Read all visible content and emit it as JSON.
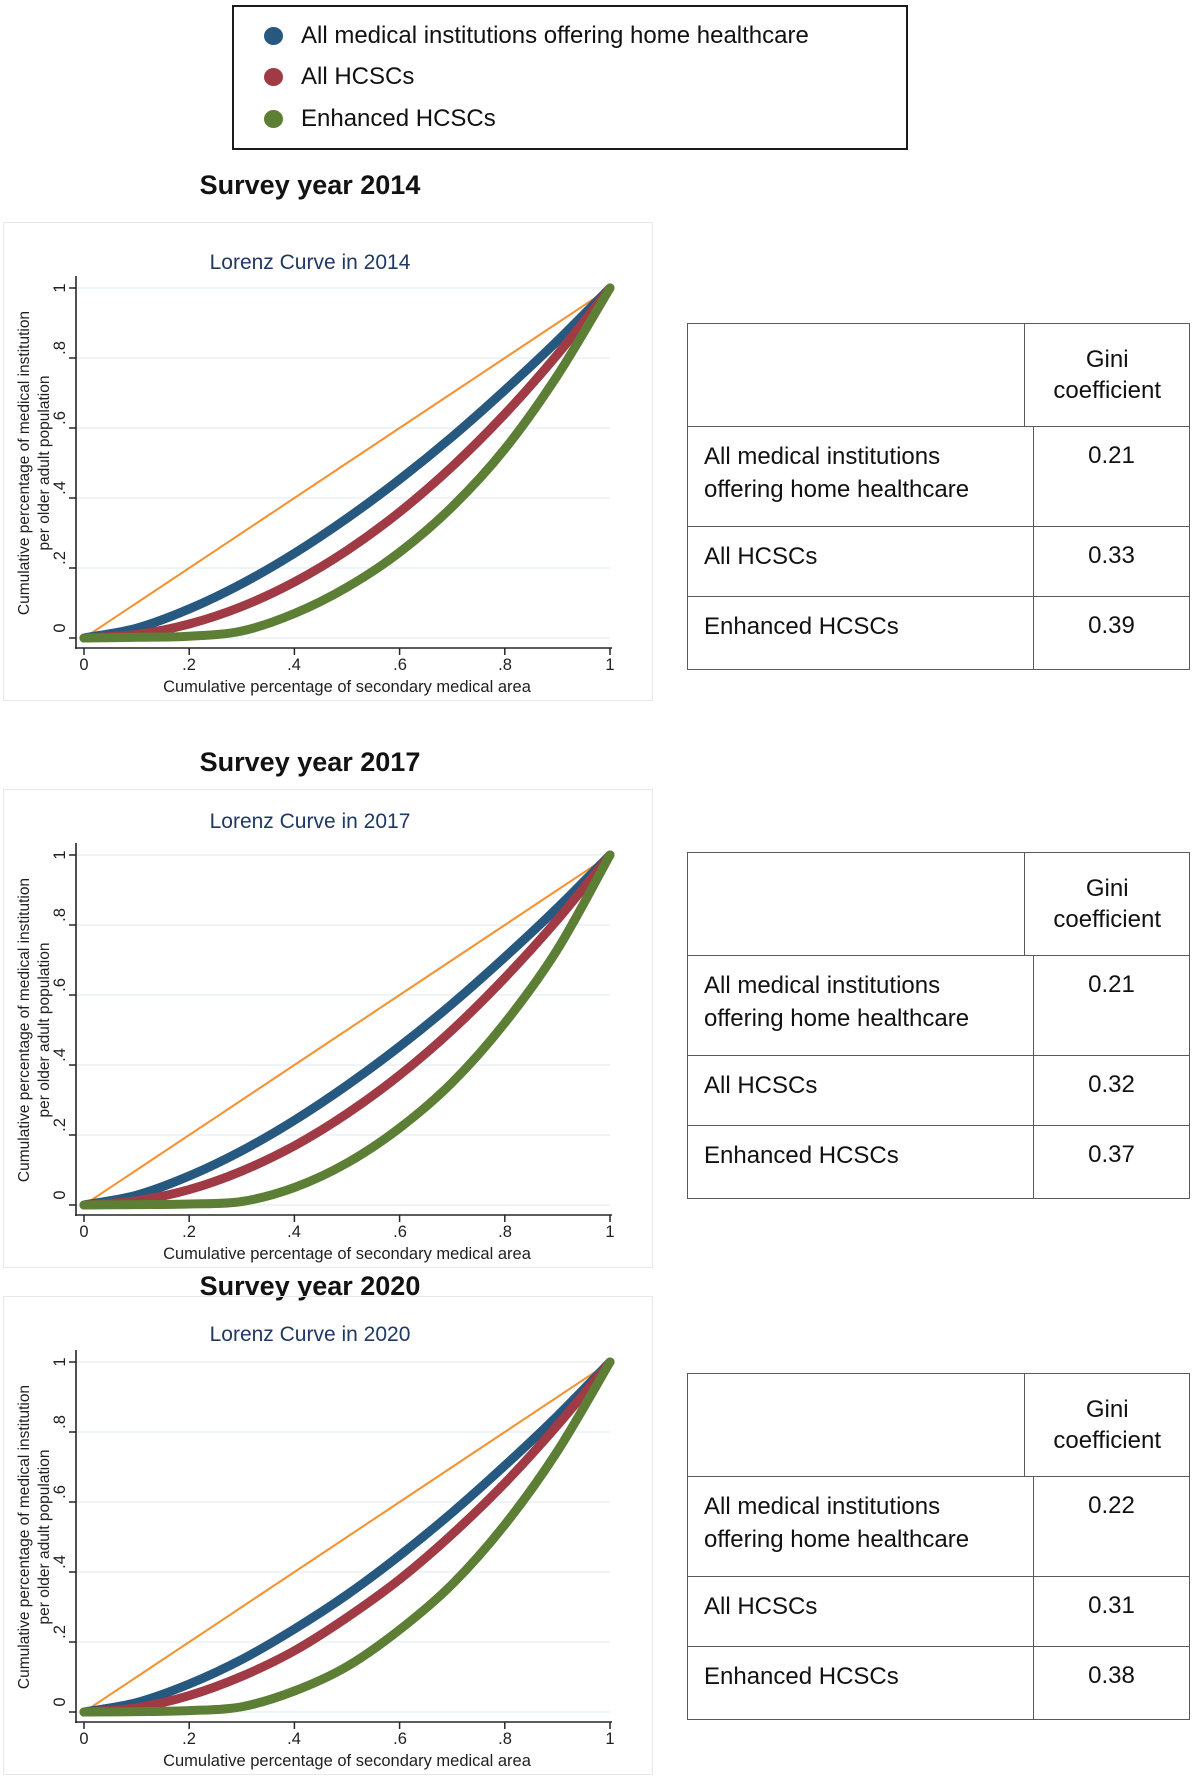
{
  "legend": {
    "items": [
      {
        "label": "All medical institutions offering home healthcare",
        "color": "#27587F"
      },
      {
        "label": "All HCSCs",
        "color": "#A03B46"
      },
      {
        "label": "Enhanced HCSCs",
        "color": "#5D7F35"
      }
    ]
  },
  "sections": [
    {
      "title": "Survey year 2014",
      "subtitle": "Lorenz Curve in 2014",
      "xlabel": "Cumulative percentage of secondary medical area",
      "ylabel_line1": "Cumulative percentage of medical institution",
      "ylabel_line2": "per older adult population",
      "xticks": [
        "0",
        ".2",
        ".4",
        ".6",
        ".8",
        "1"
      ],
      "yticks": [
        "0",
        ".2",
        ".4",
        ".6",
        ".8",
        "1"
      ],
      "table": {
        "value_header": "Gini coefficient",
        "rows": [
          {
            "label": "All medical institutions offering home healthcare",
            "value": "0.21"
          },
          {
            "label": "All HCSCs",
            "value": "0.33"
          },
          {
            "label": "Enhanced HCSCs",
            "value": "0.39"
          }
        ]
      }
    },
    {
      "title": "Survey year 2017",
      "subtitle": "Lorenz Curve in 2017",
      "xlabel": "Cumulative percentage of secondary medical area",
      "ylabel_line1": "Cumulative percentage of medical institution",
      "ylabel_line2": "per older adult population",
      "xticks": [
        "0",
        ".2",
        ".4",
        ".6",
        ".8",
        "1"
      ],
      "yticks": [
        "0",
        ".2",
        ".4",
        ".6",
        ".8",
        "1"
      ],
      "table": {
        "value_header": "Gini coefficient",
        "rows": [
          {
            "label": "All medical institutions offering home healthcare",
            "value": "0.21"
          },
          {
            "label": "All HCSCs",
            "value": "0.32"
          },
          {
            "label": "Enhanced HCSCs",
            "value": "0.37"
          }
        ]
      }
    },
    {
      "title": "Survey year 2020",
      "subtitle": "Lorenz Curve in 2020",
      "xlabel": "Cumulative percentage of secondary medical area",
      "ylabel_line1": "Cumulative percentage of medical institution",
      "ylabel_line2": "per older adult population",
      "xticks": [
        "0",
        ".2",
        ".4",
        ".6",
        ".8",
        "1"
      ],
      "yticks": [
        "0",
        ".2",
        ".4",
        ".6",
        ".8",
        "1"
      ],
      "table": {
        "value_header": "Gini coefficient",
        "rows": [
          {
            "label": "All medical institutions offering home healthcare",
            "value": "0.22"
          },
          {
            "label": "All HCSCs",
            "value": "0.31"
          },
          {
            "label": "Enhanced HCSCs",
            "value": "0.38"
          }
        ]
      }
    }
  ],
  "chart_data": [
    {
      "type": "line",
      "title": "Lorenz Curve in 2014",
      "xlabel": "Cumulative percentage of secondary medical area",
      "ylabel": "Cumulative percentage of medical institution per older adult population",
      "xlim": [
        0,
        1
      ],
      "ylim": [
        0,
        1
      ],
      "grid": "horizontal",
      "grid_color": "#E4EEF3",
      "x": [
        0,
        0.1,
        0.2,
        0.3,
        0.4,
        0.5,
        0.6,
        0.7,
        0.8,
        0.9,
        1
      ],
      "series": [
        {
          "name": "Line of equality",
          "color": "#F59130",
          "width": 2,
          "y": [
            0,
            0.1,
            0.2,
            0.3,
            0.4,
            0.5,
            0.6,
            0.7,
            0.8,
            0.9,
            1
          ]
        },
        {
          "name": "All medical institutions offering home healthcare",
          "color": "#27587F",
          "width": 9,
          "y": [
            0,
            0.028,
            0.083,
            0.155,
            0.242,
            0.342,
            0.453,
            0.575,
            0.708,
            0.849,
            1
          ]
        },
        {
          "name": "All HCSCs",
          "color": "#A03B46",
          "width": 9,
          "y": [
            0,
            0.01,
            0.04,
            0.09,
            0.16,
            0.25,
            0.36,
            0.49,
            0.64,
            0.81,
            1
          ]
        },
        {
          "name": "Enhanced HCSCs",
          "color": "#5D7F35",
          "width": 9,
          "y": [
            0,
            0.002,
            0.005,
            0.02,
            0.07,
            0.145,
            0.245,
            0.375,
            0.54,
            0.75,
            1
          ]
        }
      ],
      "gini": {
        "All medical institutions offering home healthcare": 0.21,
        "All HCSCs": 0.33,
        "Enhanced HCSCs": 0.39
      }
    },
    {
      "type": "line",
      "title": "Lorenz Curve in 2017",
      "xlabel": "Cumulative percentage of secondary medical area",
      "ylabel": "Cumulative percentage of medical institution per older adult population",
      "xlim": [
        0,
        1
      ],
      "ylim": [
        0,
        1
      ],
      "grid": "horizontal",
      "grid_color": "#E4EEF3",
      "x": [
        0,
        0.1,
        0.2,
        0.3,
        0.4,
        0.5,
        0.6,
        0.7,
        0.8,
        0.9,
        1
      ],
      "series": [
        {
          "name": "Line of equality",
          "color": "#F59130",
          "width": 2,
          "y": [
            0,
            0.1,
            0.2,
            0.3,
            0.4,
            0.5,
            0.6,
            0.7,
            0.8,
            0.9,
            1
          ]
        },
        {
          "name": "All medical institutions offering home healthcare",
          "color": "#27587F",
          "width": 9,
          "y": [
            0,
            0.028,
            0.083,
            0.155,
            0.242,
            0.342,
            0.453,
            0.575,
            0.708,
            0.849,
            1
          ]
        },
        {
          "name": "All HCSCs",
          "color": "#A03B46",
          "width": 9,
          "y": [
            0,
            0.012,
            0.044,
            0.097,
            0.169,
            0.261,
            0.371,
            0.5,
            0.649,
            0.815,
            1
          ]
        },
        {
          "name": "Enhanced HCSCs",
          "color": "#5D7F35",
          "width": 9,
          "y": [
            0,
            0.001,
            0.003,
            0.01,
            0.05,
            0.12,
            0.22,
            0.35,
            0.52,
            0.73,
            1
          ]
        }
      ],
      "gini": {
        "All medical institutions offering home healthcare": 0.21,
        "All HCSCs": 0.32,
        "Enhanced HCSCs": 0.37
      }
    },
    {
      "type": "line",
      "title": "Lorenz Curve in 2020",
      "xlabel": "Cumulative percentage of secondary medical area",
      "ylabel": "Cumulative percentage of medical institution per older adult population",
      "xlim": [
        0,
        1
      ],
      "ylim": [
        0,
        1
      ],
      "grid": "horizontal",
      "grid_color": "#E4EEF3",
      "x": [
        0,
        0.1,
        0.2,
        0.3,
        0.4,
        0.5,
        0.6,
        0.7,
        0.8,
        0.9,
        1
      ],
      "series": [
        {
          "name": "Line of equality",
          "color": "#F59130",
          "width": 2,
          "y": [
            0,
            0.1,
            0.2,
            0.3,
            0.4,
            0.5,
            0.6,
            0.7,
            0.8,
            0.9,
            1
          ]
        },
        {
          "name": "All medical institutions offering home healthcare",
          "color": "#27587F",
          "width": 9,
          "y": [
            0,
            0.027,
            0.08,
            0.15,
            0.237,
            0.335,
            0.447,
            0.57,
            0.704,
            0.846,
            1
          ]
        },
        {
          "name": "All HCSCs",
          "color": "#A03B46",
          "width": 9,
          "y": [
            0,
            0.012,
            0.047,
            0.102,
            0.175,
            0.27,
            0.379,
            0.508,
            0.654,
            0.819,
            1
          ]
        },
        {
          "name": "Enhanced HCSCs",
          "color": "#5D7F35",
          "width": 9,
          "y": [
            0,
            0.001,
            0.004,
            0.015,
            0.06,
            0.13,
            0.235,
            0.365,
            0.535,
            0.745,
            1
          ]
        }
      ],
      "gini": {
        "All medical institutions offering home healthcare": 0.22,
        "All HCSCs": 0.31,
        "Enhanced HCSCs": 0.38
      }
    }
  ]
}
